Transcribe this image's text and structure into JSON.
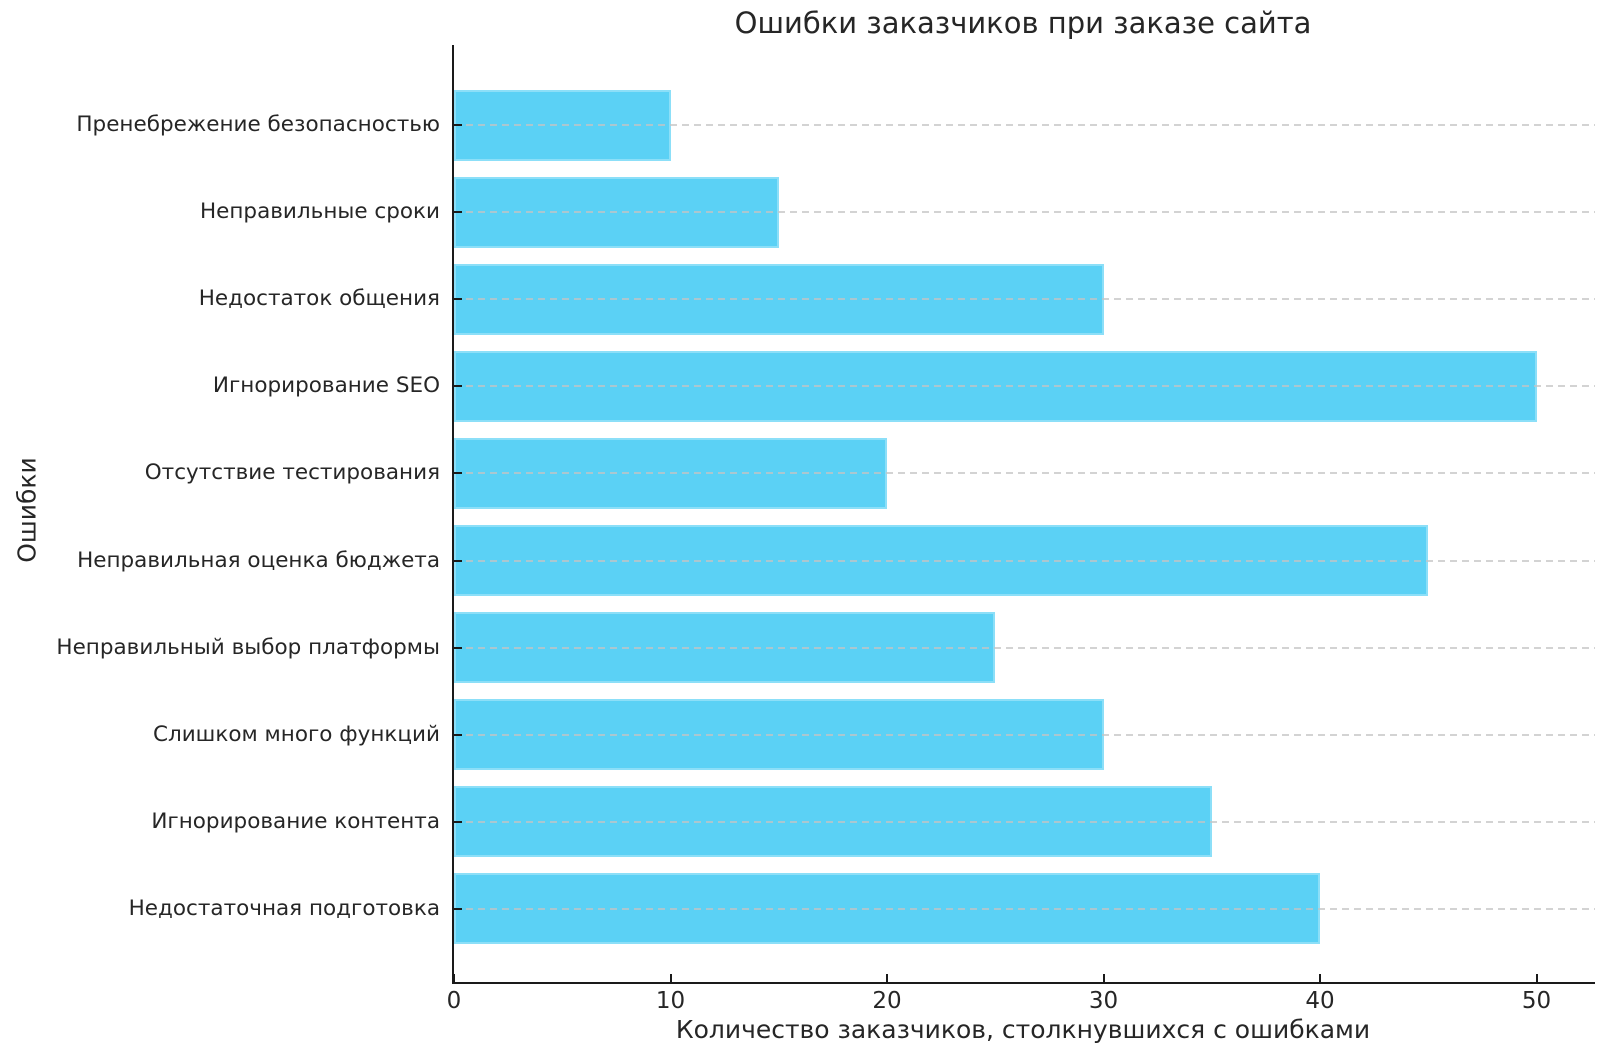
{
  "chart_data": {
    "type": "bar",
    "orientation": "horizontal",
    "title": "Ошибки заказчиков при заказе сайта",
    "xlabel": "Количество заказчиков, столкнувшихся с ошибками",
    "ylabel": "Ошибки",
    "categories": [
      "Пренебрежение безопасностью",
      "Неправильные сроки",
      "Недостаток общения",
      "Игнорирование SEO",
      "Отсутствие тестирования",
      "Неправильная оценка бюджета",
      "Неправильный выбор платформы",
      "Слишком много функций",
      "Игнорирование контента",
      "Недостаточная подготовка"
    ],
    "categories_order": "top-to-bottom",
    "values": [
      10,
      15,
      30,
      50,
      20,
      45,
      25,
      30,
      35,
      40
    ],
    "xticks": [
      "0",
      "10",
      "20",
      "30",
      "40",
      "50"
    ],
    "xtick_values": [
      0,
      10,
      20,
      30,
      40,
      50
    ],
    "xlim": [
      0,
      52.7
    ],
    "bar_color": "#5bd1f5",
    "grid": true,
    "grid_style": "dashed",
    "grid_color": "#c4c4c4",
    "spine_color": "#1a1a1a",
    "text_color": "#262626",
    "background": "#ffffff",
    "legend": false
  }
}
